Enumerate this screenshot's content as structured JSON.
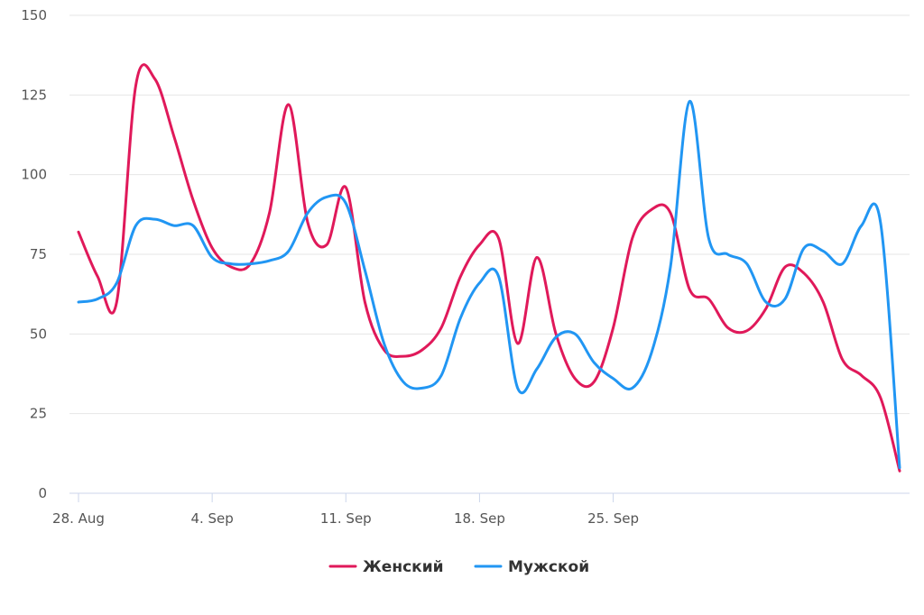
{
  "chart_data": {
    "type": "line",
    "smooth": true,
    "x_start": "2023-08-28",
    "x_tick_labels": [
      "28. Aug",
      "4. Sep",
      "11. Sep",
      "18. Sep",
      "25. Sep"
    ],
    "y_ticks": [
      0,
      25,
      50,
      75,
      100,
      125,
      150
    ],
    "ylim": [
      0,
      150
    ],
    "grid": "horizontal",
    "legend_position": "bottom-center",
    "series": [
      {
        "name": "Женский",
        "color": "#e0195a",
        "values": [
          82,
          68,
          60,
          128,
          130,
          112,
          92,
          77,
          71,
          72,
          88,
          122,
          85,
          78,
          96,
          60,
          45,
          43,
          45,
          52,
          68,
          78,
          80,
          47,
          74,
          50,
          36,
          35,
          52,
          80,
          89,
          88,
          64,
          61,
          52,
          51,
          58,
          71,
          69,
          60,
          42,
          37,
          30,
          7
        ]
      },
      {
        "name": "Мужской",
        "color": "#2196f3",
        "values": [
          60,
          61,
          66,
          84,
          86,
          84,
          84,
          74,
          72,
          72,
          73,
          76,
          88,
          93,
          91,
          70,
          47,
          35,
          33,
          37,
          55,
          66,
          68,
          33,
          39,
          49,
          50,
          41,
          36,
          33,
          44,
          71,
          123,
          80,
          75,
          72,
          60,
          61,
          77,
          76,
          72,
          84,
          85,
          8
        ]
      }
    ]
  }
}
